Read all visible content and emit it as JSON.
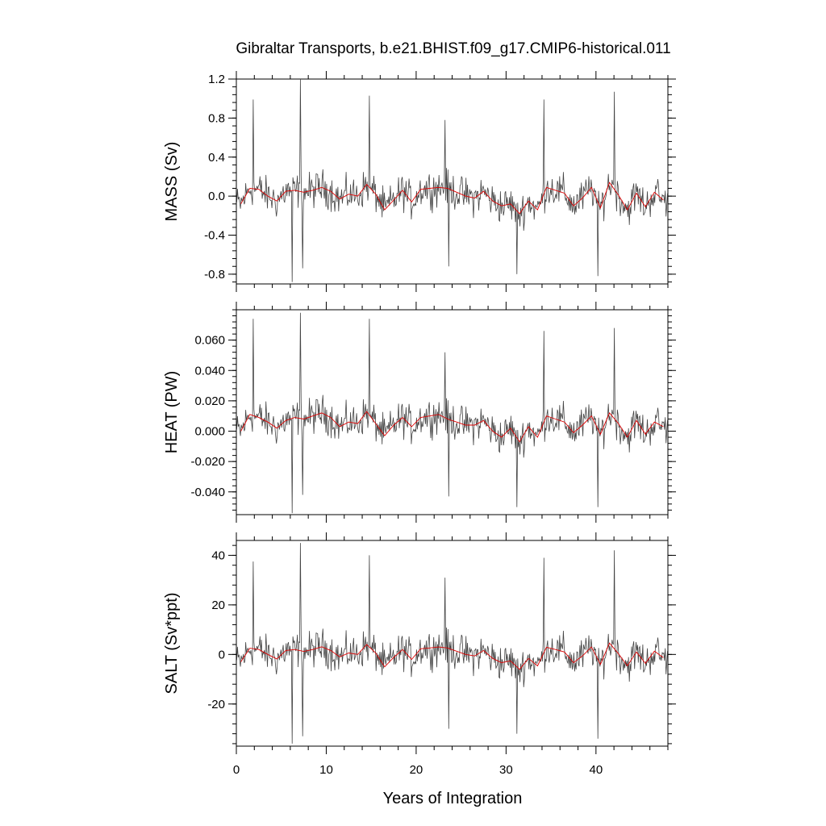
{
  "chart_data": {
    "type": "line",
    "title": "Gibraltar Transports, b.e21.BHIST.f09_g17.CMIP6-historical.011",
    "xlabel": "Years of Integration",
    "xlim": [
      0,
      48
    ],
    "xticks": [
      0,
      10,
      20,
      30,
      40
    ],
    "xtick_labels": [
      "0",
      "10",
      "20",
      "30",
      "40"
    ],
    "series_colors": {
      "monthly": "#444444",
      "annual": "#dd0000"
    },
    "panels": [
      {
        "ylabel": "MASS (Sv)",
        "ylim": [
          -0.9,
          1.2
        ],
        "yticks": [
          -0.8,
          -0.4,
          0.0,
          0.4,
          0.8,
          1.2
        ],
        "ytick_labels": [
          "-0.8",
          "-0.4",
          "0.0",
          "0.4",
          "0.8",
          "1.2"
        ],
        "annual_x": [
          0.5,
          1.5,
          2.5,
          3.5,
          4.5,
          5.5,
          6.5,
          7.5,
          8.5,
          9.5,
          10.5,
          11.5,
          12.5,
          13.5,
          14.5,
          15.5,
          16.5,
          17.5,
          18.5,
          19.5,
          20.5,
          21.5,
          22.5,
          23.5,
          24.5,
          25.5,
          26.5,
          27.5,
          28.5,
          29.5,
          30.5,
          31.5,
          32.5,
          33.5,
          34.5,
          35.5,
          36.5,
          37.5,
          38.5,
          39.5,
          40.5,
          41.5,
          42.5,
          43.5,
          44.5,
          45.5,
          46.5,
          47.5
        ],
        "annual_values": [
          -0.08,
          0.08,
          0.07,
          0.0,
          -0.05,
          0.05,
          0.06,
          0.04,
          0.06,
          0.09,
          0.05,
          -0.03,
          0.02,
          0.0,
          0.12,
          0.02,
          -0.14,
          -0.04,
          0.06,
          -0.06,
          0.07,
          0.08,
          0.09,
          0.08,
          0.04,
          0.0,
          -0.02,
          0.05,
          -0.05,
          -0.1,
          -0.08,
          -0.18,
          -0.05,
          -0.14,
          0.09,
          0.06,
          0.03,
          -0.1,
          -0.02,
          0.09,
          -0.12,
          0.14,
          0.01,
          -0.14,
          0.03,
          -0.11,
          0.04,
          -0.04
        ],
        "monthly_spikes": [
          {
            "x": 1.9,
            "v": 0.99
          },
          {
            "x": 6.2,
            "v": -0.88
          },
          {
            "x": 7.1,
            "v": 1.2
          },
          {
            "x": 7.4,
            "v": -0.74
          },
          {
            "x": 14.8,
            "v": 1.03
          },
          {
            "x": 23.2,
            "v": 0.78
          },
          {
            "x": 23.6,
            "v": -0.72
          },
          {
            "x": 31.2,
            "v": -0.8
          },
          {
            "x": 34.2,
            "v": 0.99
          },
          {
            "x": 40.2,
            "v": -0.82
          },
          {
            "x": 42.0,
            "v": 1.07
          }
        ]
      },
      {
        "ylabel": "HEAT (PW)",
        "ylim": [
          -0.055,
          0.08
        ],
        "yticks": [
          -0.04,
          -0.02,
          0.0,
          0.02,
          0.04,
          0.06
        ],
        "ytick_labels": [
          "-0.040",
          "-0.020",
          "0.000",
          "0.020",
          "0.040",
          "0.060"
        ],
        "annual_x": [
          0.5,
          1.5,
          2.5,
          3.5,
          4.5,
          5.5,
          6.5,
          7.5,
          8.5,
          9.5,
          10.5,
          11.5,
          12.5,
          13.5,
          14.5,
          15.5,
          16.5,
          17.5,
          18.5,
          19.5,
          20.5,
          21.5,
          22.5,
          23.5,
          24.5,
          25.5,
          26.5,
          27.5,
          28.5,
          29.5,
          30.5,
          31.5,
          32.5,
          33.5,
          34.5,
          35.5,
          36.5,
          37.5,
          38.5,
          39.5,
          40.5,
          41.5,
          42.5,
          43.5,
          44.5,
          45.5,
          46.5,
          47.5
        ],
        "annual_values": [
          0.0,
          0.011,
          0.009,
          0.006,
          0.002,
          0.007,
          0.009,
          0.008,
          0.01,
          0.012,
          0.009,
          0.003,
          0.006,
          0.005,
          0.013,
          0.005,
          -0.003,
          0.004,
          0.009,
          0.003,
          0.009,
          0.01,
          0.011,
          0.008,
          0.006,
          0.004,
          0.004,
          0.007,
          0.0,
          -0.004,
          0.002,
          -0.007,
          0.003,
          -0.004,
          0.01,
          0.008,
          0.006,
          -0.001,
          0.004,
          0.01,
          -0.002,
          0.012,
          0.005,
          -0.004,
          0.007,
          -0.002,
          0.006,
          0.003
        ],
        "monthly_spikes": [
          {
            "x": 1.9,
            "v": 0.074
          },
          {
            "x": 6.2,
            "v": -0.054
          },
          {
            "x": 7.1,
            "v": 0.078
          },
          {
            "x": 7.4,
            "v": -0.042
          },
          {
            "x": 14.8,
            "v": 0.074
          },
          {
            "x": 23.2,
            "v": 0.052
          },
          {
            "x": 23.6,
            "v": -0.043
          },
          {
            "x": 31.2,
            "v": -0.05
          },
          {
            "x": 34.2,
            "v": 0.066
          },
          {
            "x": 40.2,
            "v": -0.05
          },
          {
            "x": 42.0,
            "v": 0.068
          }
        ]
      },
      {
        "ylabel": "SALT (Sv*ppt)",
        "ylim": [
          -37,
          46
        ],
        "yticks": [
          -20,
          0,
          20,
          40
        ],
        "ytick_labels": [
          "-20",
          "0",
          "20",
          "40"
        ],
        "annual_x": [
          0.5,
          1.5,
          2.5,
          3.5,
          4.5,
          5.5,
          6.5,
          7.5,
          8.5,
          9.5,
          10.5,
          11.5,
          12.5,
          13.5,
          14.5,
          15.5,
          16.5,
          17.5,
          18.5,
          19.5,
          20.5,
          21.5,
          22.5,
          23.5,
          24.5,
          25.5,
          26.5,
          27.5,
          28.5,
          29.5,
          30.5,
          31.5,
          32.5,
          33.5,
          34.5,
          35.5,
          36.5,
          37.5,
          38.5,
          39.5,
          40.5,
          41.5,
          42.5,
          43.5,
          44.5,
          45.5,
          46.5,
          47.5
        ],
        "annual_values": [
          -3,
          2.5,
          2.0,
          0.0,
          -1.8,
          1.6,
          2.0,
          1.2,
          2.0,
          3.1,
          1.6,
          -1.0,
          0.6,
          0.0,
          4.0,
          0.6,
          -5.0,
          -1.2,
          2.0,
          -2.0,
          2.3,
          2.6,
          3.0,
          2.6,
          1.3,
          0.0,
          -0.6,
          1.6,
          -1.6,
          -3.3,
          -2.6,
          -6.0,
          -1.6,
          -4.6,
          2.9,
          2.0,
          1.0,
          -3.3,
          -0.6,
          3.0,
          -4.0,
          4.6,
          0.3,
          -4.6,
          1.0,
          -3.6,
          1.3,
          -1.3
        ],
        "monthly_spikes": [
          {
            "x": 1.9,
            "v": 37.5
          },
          {
            "x": 6.2,
            "v": -36
          },
          {
            "x": 7.1,
            "v": 45
          },
          {
            "x": 7.4,
            "v": -33
          },
          {
            "x": 14.8,
            "v": 40
          },
          {
            "x": 23.2,
            "v": 31
          },
          {
            "x": 23.6,
            "v": -30
          },
          {
            "x": 31.2,
            "v": -32
          },
          {
            "x": 34.2,
            "v": 39
          },
          {
            "x": 40.2,
            "v": -34
          },
          {
            "x": 42.0,
            "v": 42
          }
        ]
      }
    ]
  }
}
